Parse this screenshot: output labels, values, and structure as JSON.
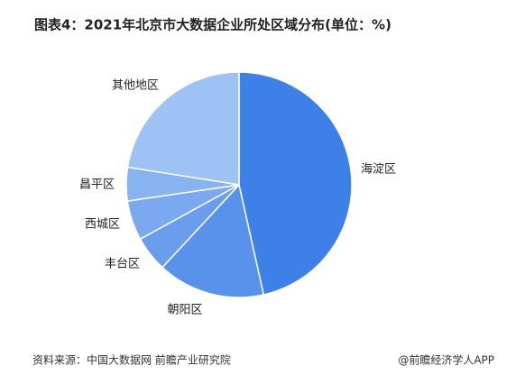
{
  "chart_data": {
    "type": "pie",
    "title": "图表4：2021年北京市大数据企业所处区域分布(单位：%)",
    "categories": [
      "海淀区",
      "朝阳区",
      "丰台区",
      "西城区",
      "昌平区",
      "其他地区"
    ],
    "values": [
      46.5,
      15.4,
      5.1,
      5.7,
      4.8,
      22.5
    ],
    "colors": [
      "#3d80e8",
      "#5892ea",
      "#6a9eec",
      "#7aa9ef",
      "#88b3f1",
      "#9ec2f4"
    ],
    "source": "资料来源：中国大数据网 前瞻产业研究院",
    "credit": "@前瞻经济学人APP"
  }
}
